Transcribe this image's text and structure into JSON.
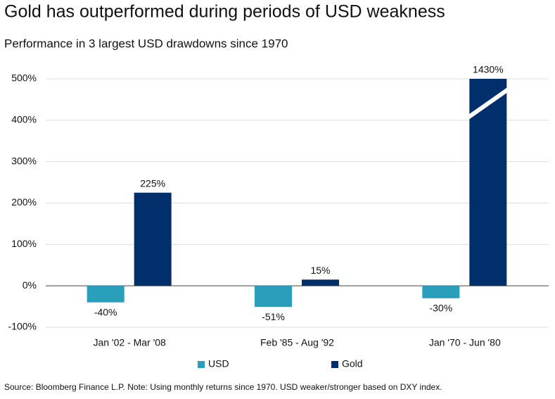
{
  "chart_data": {
    "type": "bar",
    "title": "Gold has outperformed during periods of USD weakness",
    "subtitle": "Performance in 3 largest USD drawdowns since 1970",
    "source": "Source: Bloomberg Finance L.P. Note: Using monthly returns since 1970. USD weaker/stronger based on DXY index.",
    "categories": [
      "Jan '02 - Mar '08",
      "Feb '85 - Aug '92",
      "Jan '70 - Jun '80"
    ],
    "series": [
      {
        "name": "USD",
        "color": "#2a9fbc",
        "values": [
          -40,
          -51,
          -30
        ],
        "value_labels": [
          "-40%",
          "-51%",
          "-30%"
        ]
      },
      {
        "name": "Gold",
        "color": "#002f6c",
        "values": [
          225,
          15,
          1430
        ],
        "value_labels": [
          "225%",
          "15%",
          "1430%"
        ]
      }
    ],
    "ylim": [
      -100,
      500
    ],
    "yticks": [
      {
        "value": -100,
        "label": "-100%"
      },
      {
        "value": 0,
        "label": "0%"
      },
      {
        "value": 100,
        "label": "100%"
      },
      {
        "value": 200,
        "label": "200%"
      },
      {
        "value": 300,
        "label": "300%"
      },
      {
        "value": 400,
        "label": "400%"
      },
      {
        "value": 500,
        "label": "500%"
      }
    ],
    "grid": true,
    "legend": "bottom"
  }
}
